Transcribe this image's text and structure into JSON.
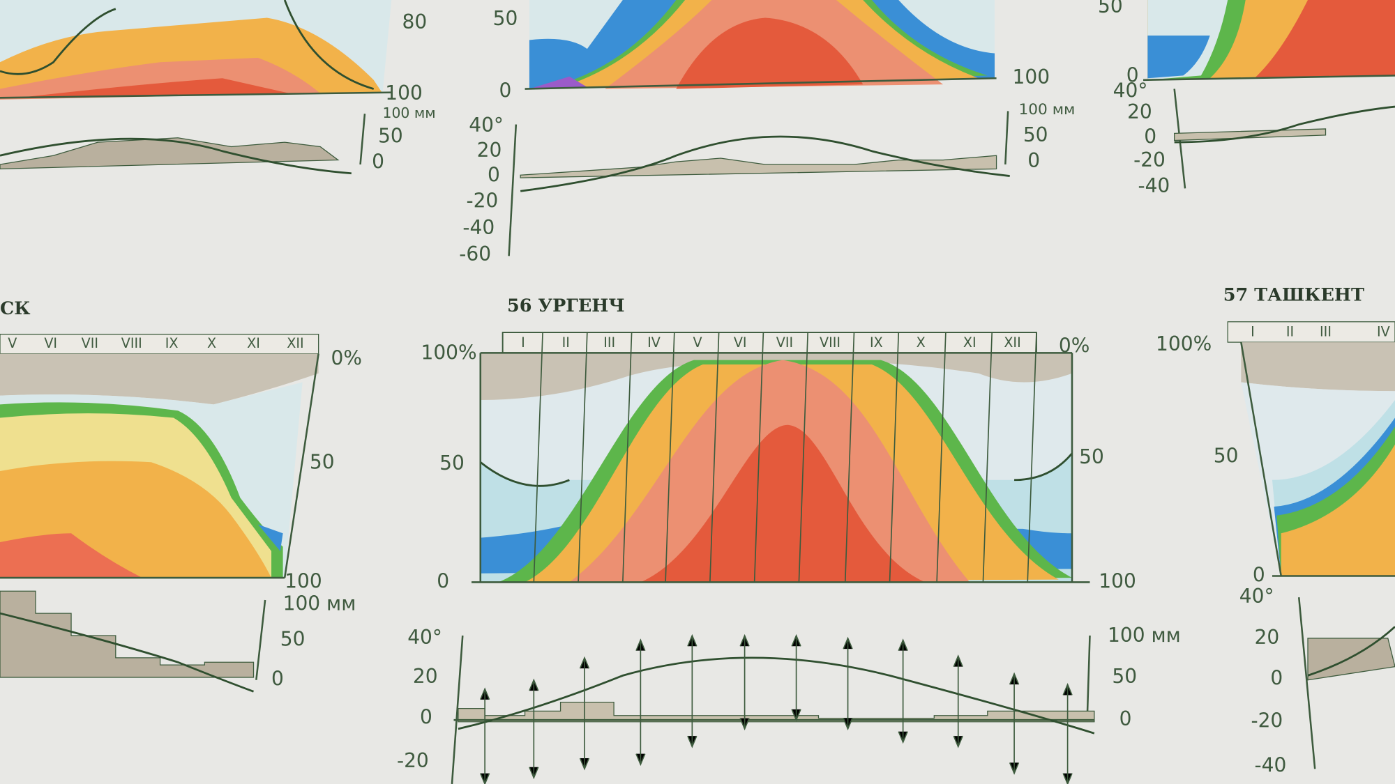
{
  "panels": {
    "top_left": {
      "right_axis": [
        "80",
        "100"
      ],
      "precip_axis": [
        "100 мм",
        "50",
        "0"
      ]
    },
    "top_middle": {
      "left_axis": [
        "50",
        "0"
      ],
      "right_axis": [
        "100"
      ],
      "temp_axis": [
        "40°",
        "20",
        "0",
        "-20",
        "-40",
        "-60"
      ],
      "precip_axis": [
        "100 мм",
        "50",
        "0"
      ]
    },
    "top_right": {
      "left_axis": [
        "50",
        "0"
      ],
      "temp_axis": [
        "40°",
        "20",
        "0",
        "-20",
        "-40"
      ]
    },
    "bottom_left": {
      "title": "СК",
      "months": [
        "V",
        "VI",
        "VII",
        "VIII",
        "IX",
        "X",
        "XI",
        "XII"
      ],
      "right_axis": [
        "0%",
        "50",
        "100"
      ],
      "precip_axis": [
        "100 мм",
        "50",
        "0"
      ]
    },
    "urgench": {
      "title": "56  УРГЕНЧ",
      "months": [
        "I",
        "II",
        "III",
        "IV",
        "V",
        "VI",
        "VII",
        "VIII",
        "IX",
        "X",
        "XI",
        "XII"
      ],
      "left_axis": [
        "100%",
        "50",
        "0"
      ],
      "right_axis": [
        "0%",
        "50",
        "100"
      ],
      "temp_axis": [
        "40°",
        "20",
        "0",
        "-20"
      ],
      "precip_axis": [
        "100 мм",
        "50",
        "0"
      ]
    },
    "tashkent": {
      "title": "57  ТАШКЕНТ",
      "months": [
        "I",
        "II",
        "III",
        "IV"
      ],
      "left_axis": [
        "100%",
        "50",
        "0"
      ],
      "temp_axis": [
        "40°",
        "20",
        "0",
        "-20",
        "-40"
      ]
    }
  }
}
